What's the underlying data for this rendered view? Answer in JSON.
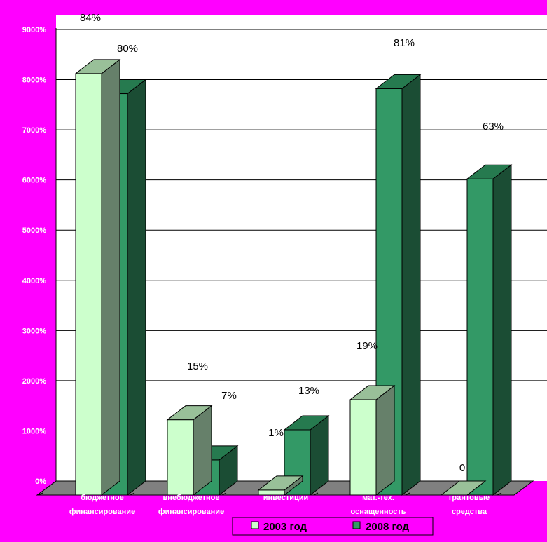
{
  "chart_data": {
    "type": "bar",
    "categories": [
      [
        "бюджетное",
        "финансирование"
      ],
      [
        "внебюджетное",
        "финансирование"
      ],
      [
        "инвестиции"
      ],
      [
        "мат.-тех.",
        "оснащенность"
      ],
      [
        "грантовые",
        "средства"
      ]
    ],
    "series": [
      {
        "name": "2003 год",
        "values": [
          84,
          15,
          1,
          19,
          0
        ],
        "labels": [
          "84%",
          "15%",
          "1%",
          "19%",
          "0"
        ]
      },
      {
        "name": "2008 год",
        "values": [
          80,
          7,
          13,
          81,
          63
        ],
        "labels": [
          "80%",
          "7%",
          "13%",
          "81%",
          "63%"
        ]
      }
    ],
    "y_tick_labels": [
      "0%",
      "1000%",
      "2000%",
      "3000%",
      "4000%",
      "5000%",
      "6000%",
      "7000%",
      "8000%",
      "9000%"
    ],
    "ylim": [
      0,
      90
    ],
    "grid": true,
    "legend_position": "bottom",
    "colors": {
      "background": "#ff00ff",
      "plot_area": "#ffffff",
      "floor": "#808080",
      "series_2003_front": "#ccffcc",
      "series_2003_side": "#66806a",
      "series_2003_top": "#99c099",
      "series_2008_front": "#339966",
      "series_2008_side": "#1b4d34",
      "series_2008_top": "#267a4f"
    }
  }
}
